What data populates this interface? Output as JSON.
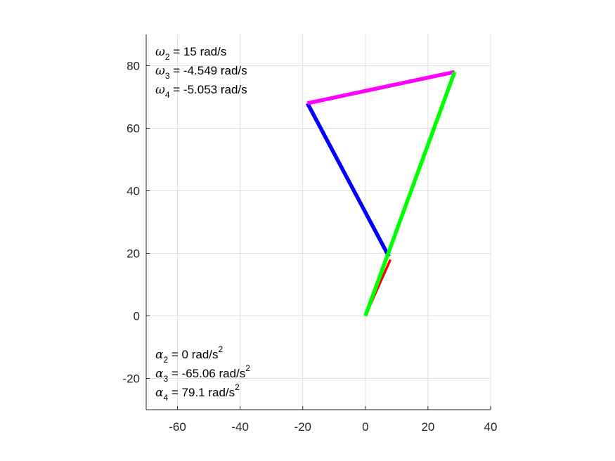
{
  "chart_data": {
    "type": "line",
    "title": "",
    "xlabel": "",
    "ylabel": "",
    "xlim": [
      -70,
      40
    ],
    "ylim": [
      -30,
      90
    ],
    "x_ticks": [
      -60,
      -40,
      -20,
      0,
      20,
      40
    ],
    "y_ticks": [
      -20,
      0,
      20,
      40,
      60,
      80
    ],
    "grid": true,
    "axis_equal": true,
    "series": [
      {
        "x": [
          0,
          8
        ],
        "y": [
          0,
          18
        ],
        "color": "#ff0000"
      },
      {
        "x": [
          7.5,
          -18.5
        ],
        "y": [
          19,
          68
        ],
        "color": "#0000ff"
      },
      {
        "x": [
          -18.5,
          28.5
        ],
        "y": [
          68,
          78
        ],
        "color": "#ff00ff"
      },
      {
        "x": [
          0,
          28.5
        ],
        "y": [
          0,
          78
        ],
        "color": "#00ff00"
      }
    ],
    "annotations": {
      "velocities": [
        {
          "symbol": "ω",
          "sub": "2",
          "text": " = 15 rad/s"
        },
        {
          "symbol": "ω",
          "sub": "3",
          "text": " = -4.549 rad/s"
        },
        {
          "symbol": "ω",
          "sub": "4",
          "text": " = -5.053 rad/s"
        }
      ],
      "accelerations": [
        {
          "symbol": "α",
          "sub": "2",
          "text": " = 0 rad/s",
          "sup": "2"
        },
        {
          "symbol": "α",
          "sub": "3",
          "text": " = -65.06 rad/s",
          "sup": "2"
        },
        {
          "symbol": "α",
          "sub": "4",
          "text": " = 79.1 rad/s",
          "sup": "2"
        }
      ]
    }
  }
}
